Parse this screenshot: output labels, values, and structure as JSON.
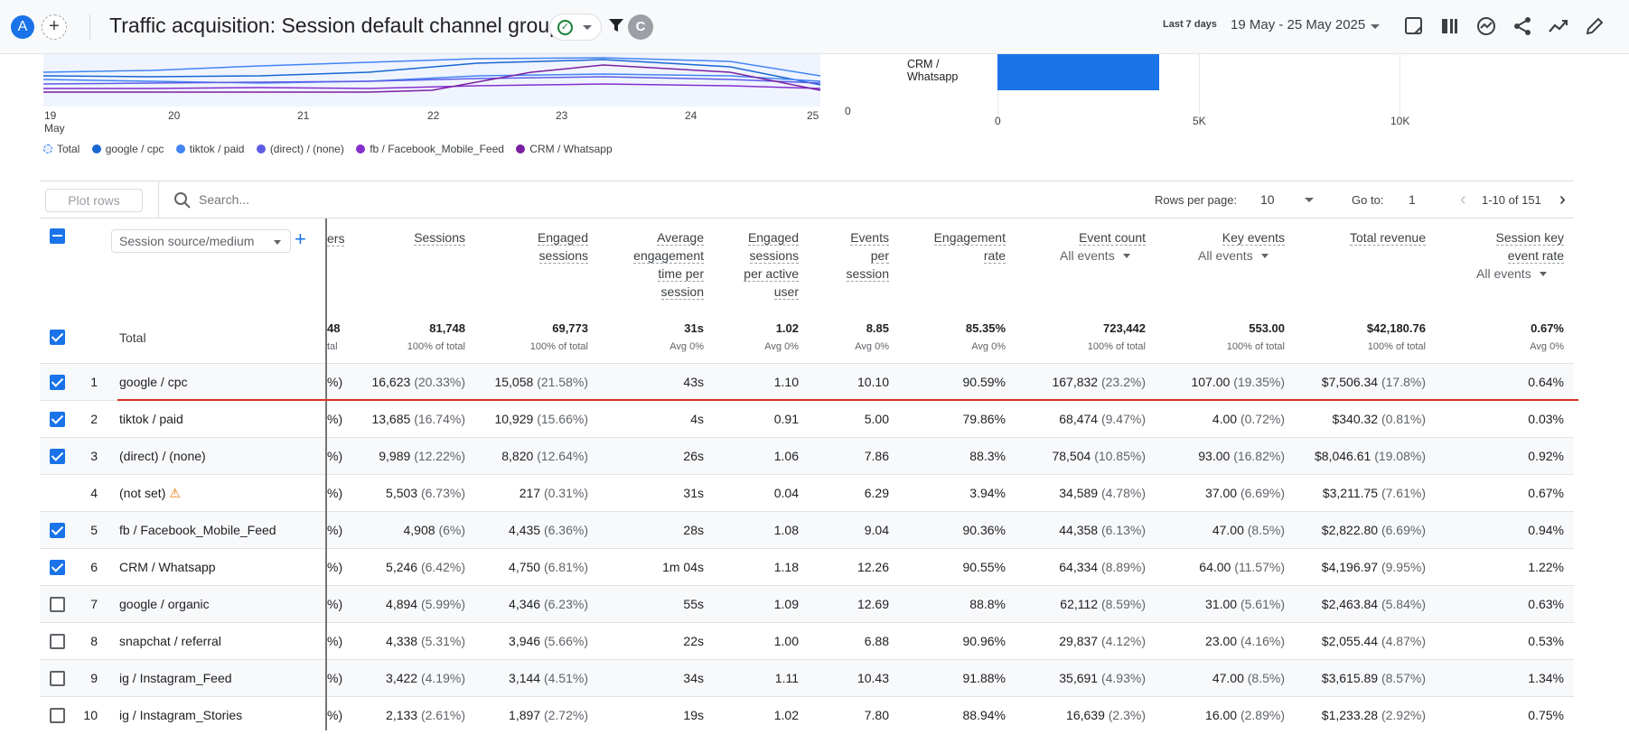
{
  "header": {
    "avatar_letter": "A",
    "add_comparison": "+",
    "title": "Traffic acquisition: Session default channel group",
    "user_initial": "C",
    "date_label": "Last 7 days",
    "date_range": "19 May - 25 May 2025",
    "toolbar_icons": [
      "share-report-icon",
      "compare-icon",
      "insights-icon",
      "share-icon",
      "trend-icon",
      "edit-icon"
    ]
  },
  "line_chart": {
    "x_labels": [
      "19",
      "20",
      "21",
      "22",
      "23",
      "24",
      "25"
    ],
    "x_sub_label": "May",
    "series_colors": {
      "total": "#4285f4",
      "google_cpc": "#1967d2",
      "tiktok_paid": "#4285f4",
      "direct_none": "#5e5ce6",
      "fb_feed": "#8430ce",
      "crm_whatsapp": "#7b1fa2"
    }
  },
  "bar_chart": {
    "zero_label": "0",
    "bar_label": "CRM /\nWhatsapp",
    "tick_labels": [
      "0",
      "5K",
      "10K"
    ]
  },
  "legend": [
    {
      "label": "Total",
      "color": "#1a73e8"
    },
    {
      "label": "google / cpc",
      "color": "#1967d2"
    },
    {
      "label": "tiktok / paid",
      "color": "#4285f4"
    },
    {
      "label": "(direct) / (none)",
      "color": "#5e5ce6"
    },
    {
      "label": "fb / Facebook_Mobile_Feed",
      "color": "#8430ce"
    },
    {
      "label": "CRM / Whatsapp",
      "color": "#7b1fa2"
    }
  ],
  "toolbar": {
    "plot_rows": "Plot rows",
    "search_placeholder": "Search...",
    "rows_per_page_label": "Rows per page:",
    "rows_per_page": "10",
    "goto_label": "Go to:",
    "goto_value": "1",
    "page_range": "1-10 of 151"
  },
  "table": {
    "dimension": "Session source/medium",
    "truncated_header": "ers",
    "columns": [
      {
        "lines": [
          "Sessions"
        ],
        "sub": ""
      },
      {
        "lines": [
          "Engaged",
          "sessions"
        ],
        "sub": ""
      },
      {
        "lines": [
          "Average",
          "engagement",
          "time per",
          "session"
        ],
        "sub": ""
      },
      {
        "lines": [
          "Engaged",
          "sessions",
          "per active",
          "user"
        ],
        "sub": ""
      },
      {
        "lines": [
          "Events",
          "per",
          "session"
        ],
        "sub": ""
      },
      {
        "lines": [
          "Engagement",
          "rate"
        ],
        "sub": ""
      },
      {
        "lines": [
          "Event count"
        ],
        "sub": "All events"
      },
      {
        "lines": [
          "Key events"
        ],
        "sub": "All events"
      },
      {
        "lines": [
          "Total revenue"
        ],
        "sub": ""
      },
      {
        "lines": [
          "Session key",
          "event rate"
        ],
        "sub": "All events"
      }
    ],
    "total_label": "Total",
    "totals": {
      "trunc": "48",
      "trunc_sub": "tal",
      "values": [
        "81,748",
        "69,773",
        "31s",
        "1.02",
        "8.85",
        "85.35%",
        "723,442",
        "553.00",
        "$42,180.76",
        "0.67%"
      ],
      "subs": [
        "100% of total",
        "100% of total",
        "Avg 0%",
        "Avg 0%",
        "Avg 0%",
        "Avg 0%",
        "100% of total",
        "100% of total",
        "100% of total",
        "Avg 0%"
      ]
    },
    "rows": [
      {
        "n": "1",
        "name": "google / cpc",
        "checked": true,
        "trunc": "%)",
        "sessions": "16,623",
        "sessions_pct": "(20.33%)",
        "engaged": "15,058",
        "engaged_pct": "(21.58%)",
        "avg_time": "43s",
        "per_user": "1.10",
        "events_per": "10.10",
        "eng_rate": "90.59%",
        "event_count": "167,832",
        "event_count_pct": "(23.2%)",
        "key_events": "107.00",
        "key_events_pct": "(19.35%)",
        "revenue": "$7,506.34",
        "revenue_pct": "(17.8%)",
        "key_rate": "0.64%"
      },
      {
        "n": "2",
        "name": "tiktok / paid",
        "checked": true,
        "trunc": "%)",
        "sessions": "13,685",
        "sessions_pct": "(16.74%)",
        "engaged": "10,929",
        "engaged_pct": "(15.66%)",
        "avg_time": "4s",
        "per_user": "0.91",
        "events_per": "5.00",
        "eng_rate": "79.86%",
        "event_count": "68,474",
        "event_count_pct": "(9.47%)",
        "key_events": "4.00",
        "key_events_pct": "(0.72%)",
        "revenue": "$340.32",
        "revenue_pct": "(0.81%)",
        "key_rate": "0.03%"
      },
      {
        "n": "3",
        "name": "(direct) / (none)",
        "checked": true,
        "trunc": "%)",
        "sessions": "9,989",
        "sessions_pct": "(12.22%)",
        "engaged": "8,820",
        "engaged_pct": "(12.64%)",
        "avg_time": "26s",
        "per_user": "1.06",
        "events_per": "7.86",
        "eng_rate": "88.3%",
        "event_count": "78,504",
        "event_count_pct": "(10.85%)",
        "key_events": "93.00",
        "key_events_pct": "(16.82%)",
        "revenue": "$8,046.61",
        "revenue_pct": "(19.08%)",
        "key_rate": "0.92%"
      },
      {
        "n": "4",
        "name": "(not set)",
        "checked": null,
        "warning": true,
        "trunc": "%)",
        "sessions": "5,503",
        "sessions_pct": "(6.73%)",
        "engaged": "217",
        "engaged_pct": "(0.31%)",
        "avg_time": "31s",
        "per_user": "0.04",
        "events_per": "6.29",
        "eng_rate": "3.94%",
        "event_count": "34,589",
        "event_count_pct": "(4.78%)",
        "key_events": "37.00",
        "key_events_pct": "(6.69%)",
        "revenue": "$3,211.75",
        "revenue_pct": "(7.61%)",
        "key_rate": "0.67%"
      },
      {
        "n": "5",
        "name": "fb / Facebook_Mobile_Feed",
        "checked": true,
        "trunc": "%)",
        "sessions": "4,908",
        "sessions_pct": "(6%)",
        "engaged": "4,435",
        "engaged_pct": "(6.36%)",
        "avg_time": "28s",
        "per_user": "1.08",
        "events_per": "9.04",
        "eng_rate": "90.36%",
        "event_count": "44,358",
        "event_count_pct": "(6.13%)",
        "key_events": "47.00",
        "key_events_pct": "(8.5%)",
        "revenue": "$2,822.80",
        "revenue_pct": "(6.69%)",
        "key_rate": "0.94%"
      },
      {
        "n": "6",
        "name": "CRM / Whatsapp",
        "checked": true,
        "trunc": "%)",
        "sessions": "5,246",
        "sessions_pct": "(6.42%)",
        "engaged": "4,750",
        "engaged_pct": "(6.81%)",
        "avg_time": "1m 04s",
        "per_user": "1.18",
        "events_per": "12.26",
        "eng_rate": "90.55%",
        "event_count": "64,334",
        "event_count_pct": "(8.89%)",
        "key_events": "64.00",
        "key_events_pct": "(11.57%)",
        "revenue": "$4,196.97",
        "revenue_pct": "(9.95%)",
        "key_rate": "1.22%"
      },
      {
        "n": "7",
        "name": "google / organic",
        "checked": false,
        "trunc": "%)",
        "sessions": "4,894",
        "sessions_pct": "(5.99%)",
        "engaged": "4,346",
        "engaged_pct": "(6.23%)",
        "avg_time": "55s",
        "per_user": "1.09",
        "events_per": "12.69",
        "eng_rate": "88.8%",
        "event_count": "62,112",
        "event_count_pct": "(8.59%)",
        "key_events": "31.00",
        "key_events_pct": "(5.61%)",
        "revenue": "$2,463.84",
        "revenue_pct": "(5.84%)",
        "key_rate": "0.63%"
      },
      {
        "n": "8",
        "name": "snapchat / referral",
        "checked": false,
        "trunc": "%)",
        "sessions": "4,338",
        "sessions_pct": "(5.31%)",
        "engaged": "3,946",
        "engaged_pct": "(5.66%)",
        "avg_time": "22s",
        "per_user": "1.00",
        "events_per": "6.88",
        "eng_rate": "90.96%",
        "event_count": "29,837",
        "event_count_pct": "(4.12%)",
        "key_events": "23.00",
        "key_events_pct": "(4.16%)",
        "revenue": "$2,055.44",
        "revenue_pct": "(4.87%)",
        "key_rate": "0.53%"
      },
      {
        "n": "9",
        "name": "ig / Instagram_Feed",
        "checked": false,
        "trunc": "%)",
        "sessions": "3,422",
        "sessions_pct": "(4.19%)",
        "engaged": "3,144",
        "engaged_pct": "(4.51%)",
        "avg_time": "34s",
        "per_user": "1.11",
        "events_per": "10.43",
        "eng_rate": "91.88%",
        "event_count": "35,691",
        "event_count_pct": "(4.93%)",
        "key_events": "47.00",
        "key_events_pct": "(8.5%)",
        "revenue": "$3,615.89",
        "revenue_pct": "(8.57%)",
        "key_rate": "1.34%"
      },
      {
        "n": "10",
        "name": "ig / Instagram_Stories",
        "checked": false,
        "trunc": "%)",
        "sessions": "2,133",
        "sessions_pct": "(2.61%)",
        "engaged": "1,897",
        "engaged_pct": "(2.72%)",
        "avg_time": "19s",
        "per_user": "1.02",
        "events_per": "7.80",
        "eng_rate": "88.94%",
        "event_count": "16,639",
        "event_count_pct": "(2.3%)",
        "key_events": "16.00",
        "key_events_pct": "(2.89%)",
        "revenue": "$1,233.28",
        "revenue_pct": "(2.92%)",
        "key_rate": "0.75%"
      }
    ]
  }
}
